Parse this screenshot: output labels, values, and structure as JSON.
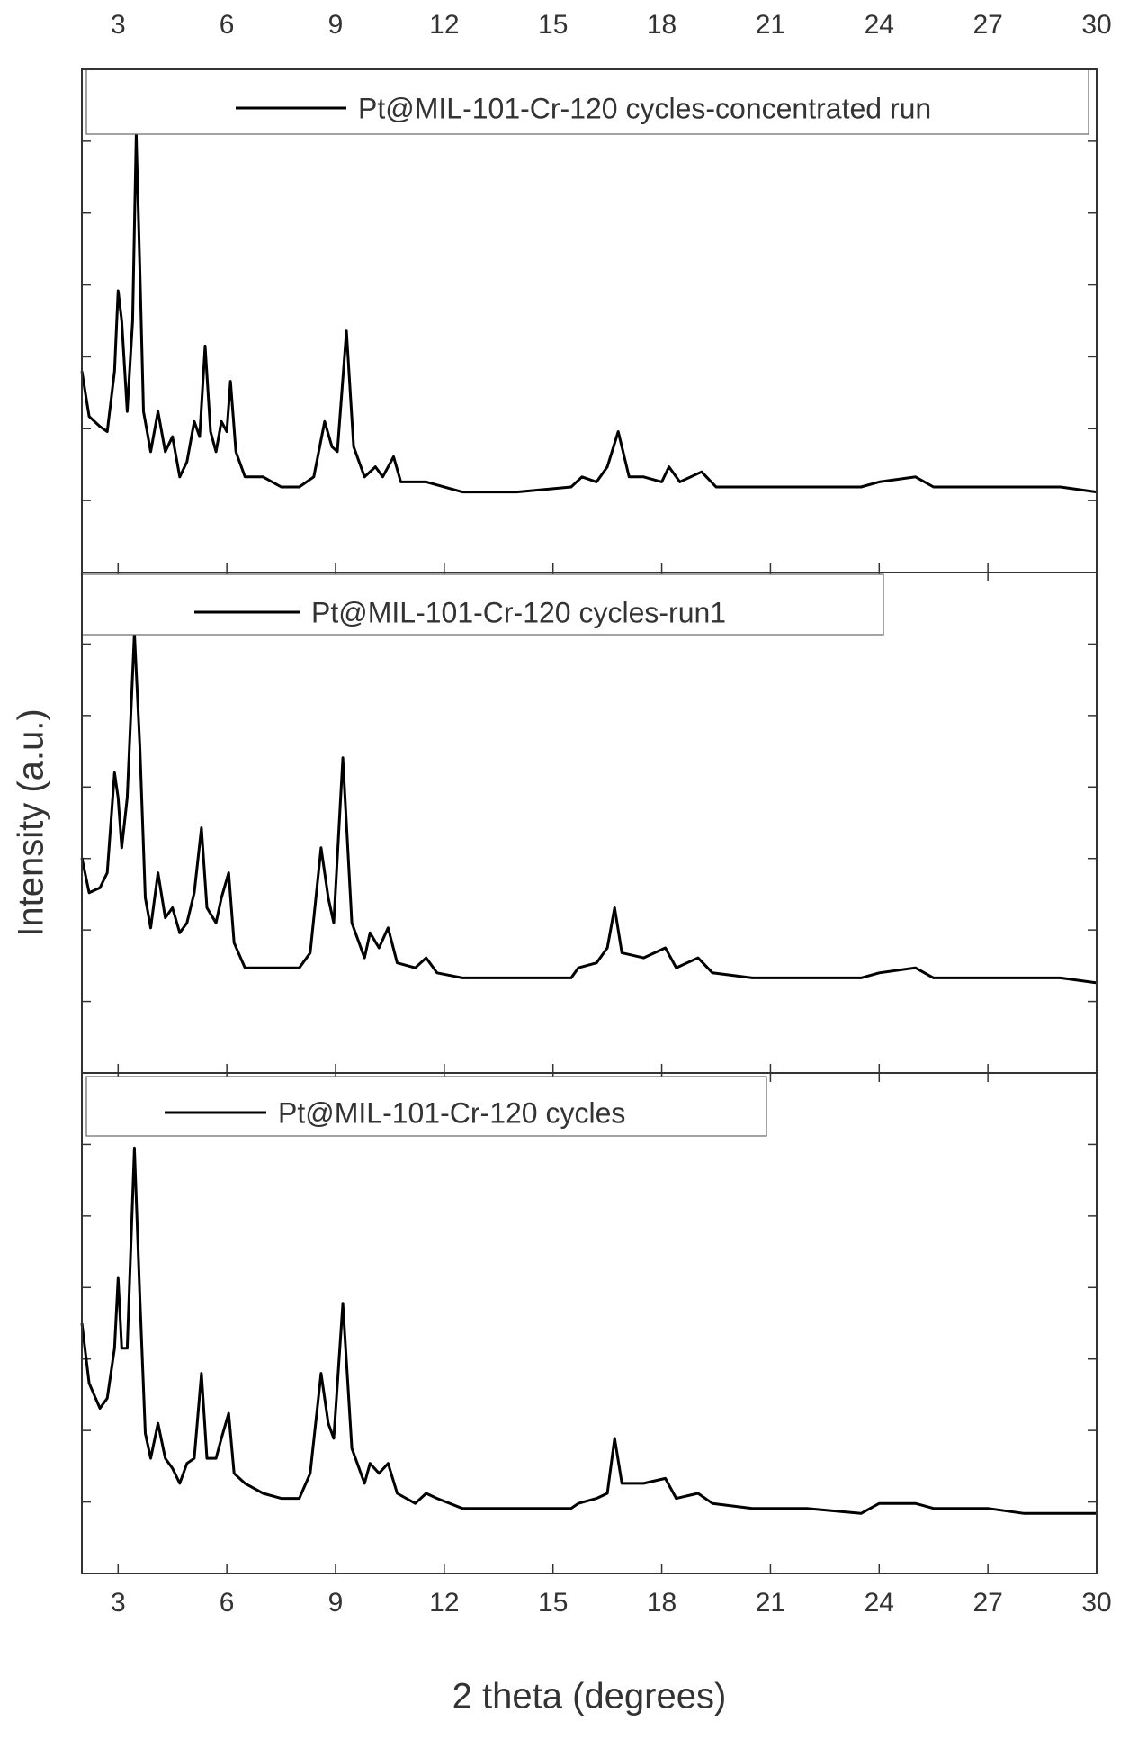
{
  "chart_data": [
    {
      "type": "line",
      "xaxis": "top",
      "xlim": [
        2,
        30
      ],
      "ylim": [
        0,
        100
      ],
      "xticks": [
        3,
        6,
        9,
        12,
        15,
        18,
        21,
        24,
        27,
        30
      ],
      "x": [
        2.0,
        2.2,
        2.5,
        2.7,
        2.9,
        3.0,
        3.1,
        3.25,
        3.4,
        3.5,
        3.6,
        3.7,
        3.9,
        4.1,
        4.3,
        4.5,
        4.7,
        4.9,
        5.1,
        5.25,
        5.4,
        5.55,
        5.7,
        5.85,
        6.0,
        6.1,
        6.25,
        6.5,
        7.0,
        7.5,
        8.0,
        8.4,
        8.7,
        8.9,
        9.05,
        9.3,
        9.5,
        9.8,
        10.1,
        10.3,
        10.6,
        10.8,
        11.5,
        12.5,
        14,
        15.5,
        15.8,
        16.2,
        16.5,
        16.8,
        17.1,
        17.5,
        18,
        18.2,
        18.5,
        19.1,
        19.5,
        20.5,
        22,
        23.5,
        24,
        25,
        25.5,
        27,
        28,
        29,
        30
      ],
      "series": [
        {
          "name": "Pt@MIL-101-Cr-120 cycles-concentrated run",
          "color": "#000000",
          "values": [
            40,
            31,
            29,
            28,
            40,
            56,
            50,
            32,
            50,
            87,
            60,
            32,
            24,
            32,
            24,
            27,
            19,
            22,
            30,
            27,
            45,
            28,
            24,
            30,
            28,
            38,
            24,
            19,
            19,
            17,
            17,
            19,
            30,
            25,
            24,
            48,
            25,
            19,
            21,
            19,
            23,
            18,
            18,
            16,
            16,
            17,
            19,
            18,
            21,
            28,
            19,
            19,
            18,
            21,
            18,
            20,
            17,
            17,
            17,
            17,
            18,
            19,
            17,
            17,
            17,
            17,
            16
          ]
        }
      ]
    },
    {
      "type": "line",
      "xaxis": "none",
      "xlim": [
        2,
        30
      ],
      "ylim": [
        0,
        100
      ],
      "ylabel": "Intensity (a.u.)",
      "xticks": [
        3,
        6,
        9,
        12,
        15,
        18,
        21,
        24,
        27,
        30
      ],
      "x": [
        2.0,
        2.2,
        2.5,
        2.7,
        2.9,
        3.0,
        3.1,
        3.25,
        3.45,
        3.6,
        3.75,
        3.9,
        4.1,
        4.3,
        4.5,
        4.7,
        4.9,
        5.1,
        5.3,
        5.45,
        5.7,
        5.85,
        6.05,
        6.2,
        6.5,
        7.0,
        7.5,
        8.0,
        8.3,
        8.6,
        8.8,
        8.95,
        9.2,
        9.45,
        9.8,
        9.95,
        10.2,
        10.45,
        10.7,
        11.2,
        11.5,
        11.8,
        12.5,
        14,
        15.5,
        15.7,
        16.2,
        16.5,
        16.7,
        16.9,
        17.5,
        18.1,
        18.4,
        19,
        19.4,
        20.5,
        22,
        23.5,
        24,
        25,
        25.5,
        27,
        28,
        29,
        30
      ],
      "series": [
        {
          "name": "Pt@MIL-101-Cr-120 cycles-run1",
          "color": "#000000",
          "values": [
            43,
            36,
            37,
            40,
            60,
            55,
            45,
            55,
            88,
            65,
            35,
            29,
            40,
            31,
            33,
            28,
            30,
            36,
            49,
            33,
            30,
            35,
            40,
            26,
            21,
            21,
            21,
            21,
            24,
            45,
            35,
            30,
            63,
            30,
            23,
            28,
            25,
            29,
            22,
            21,
            23,
            20,
            19,
            19,
            19,
            21,
            22,
            25,
            33,
            24,
            23,
            25,
            21,
            23,
            20,
            19,
            19,
            19,
            20,
            21,
            19,
            19,
            19,
            19,
            18
          ]
        }
      ]
    },
    {
      "type": "line",
      "xaxis": "bottom",
      "xlim": [
        2,
        30
      ],
      "ylim": [
        0,
        100
      ],
      "xlabel": "2 theta (degrees)",
      "xticks": [
        3,
        6,
        9,
        12,
        15,
        18,
        21,
        24,
        27,
        30
      ],
      "x": [
        2.0,
        2.2,
        2.5,
        2.7,
        2.9,
        3.0,
        3.1,
        3.25,
        3.45,
        3.6,
        3.75,
        3.9,
        4.1,
        4.3,
        4.5,
        4.7,
        4.9,
        5.1,
        5.3,
        5.45,
        5.7,
        5.85,
        6.05,
        6.2,
        6.5,
        7.0,
        7.5,
        8.0,
        8.3,
        8.6,
        8.8,
        8.95,
        9.2,
        9.45,
        9.8,
        9.95,
        10.2,
        10.45,
        10.7,
        11.2,
        11.5,
        11.8,
        12.5,
        14,
        15.5,
        15.7,
        16.2,
        16.5,
        16.7,
        16.9,
        17.5,
        18.1,
        18.4,
        19,
        19.4,
        20.5,
        22,
        23.5,
        24,
        25,
        25.5,
        27,
        28,
        29,
        30
      ],
      "series": [
        {
          "name": "Pt@MIL-101-Cr-120 cycles",
          "color": "#000000",
          "values": [
            50,
            38,
            33,
            35,
            45,
            59,
            45,
            45,
            85,
            55,
            28,
            23,
            30,
            23,
            21,
            18,
            22,
            23,
            40,
            23,
            23,
            27,
            32,
            20,
            18,
            16,
            15,
            15,
            20,
            40,
            30,
            27,
            54,
            25,
            18,
            22,
            20,
            22,
            16,
            14,
            16,
            15,
            13,
            13,
            13,
            14,
            15,
            16,
            27,
            18,
            18,
            19,
            15,
            16,
            14,
            13,
            13,
            12,
            14,
            14,
            13,
            13,
            12,
            12,
            12
          ]
        }
      ]
    }
  ]
}
